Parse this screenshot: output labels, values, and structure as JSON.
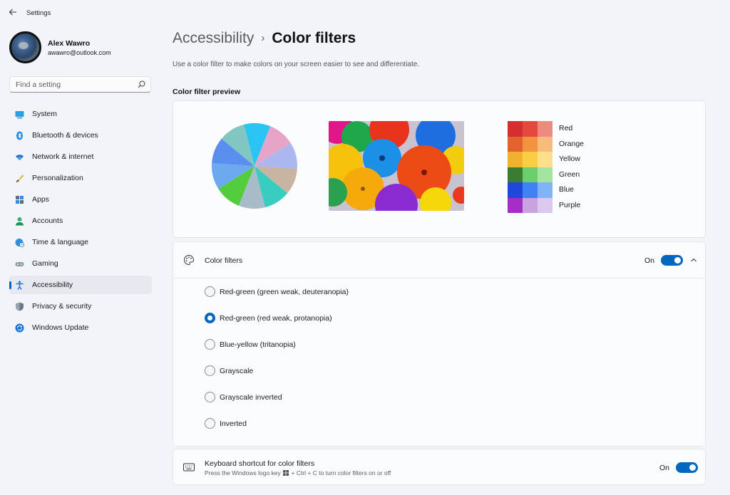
{
  "app": {
    "title": "Settings"
  },
  "user": {
    "name": "Alex Wawro",
    "email": "awawro@outlook.com"
  },
  "search": {
    "placeholder": "Find a setting"
  },
  "sidebar": {
    "items": [
      {
        "label": "System",
        "icon": "monitor-icon"
      },
      {
        "label": "Bluetooth & devices",
        "icon": "bluetooth-icon"
      },
      {
        "label": "Network & internet",
        "icon": "wifi-icon"
      },
      {
        "label": "Personalization",
        "icon": "brush-icon"
      },
      {
        "label": "Apps",
        "icon": "apps-icon"
      },
      {
        "label": "Accounts",
        "icon": "person-icon"
      },
      {
        "label": "Time & language",
        "icon": "globe-clock-icon"
      },
      {
        "label": "Gaming",
        "icon": "gamepad-icon"
      },
      {
        "label": "Accessibility",
        "icon": "accessibility-icon",
        "active": true
      },
      {
        "label": "Privacy & security",
        "icon": "shield-icon"
      },
      {
        "label": "Windows Update",
        "icon": "update-icon"
      }
    ]
  },
  "breadcrumb": {
    "parent": "Accessibility",
    "separator": "›",
    "current": "Color filters"
  },
  "description": "Use a color filter to make colors on your screen easier to see and differentiate.",
  "preview": {
    "title": "Color filter preview",
    "swatches": [
      {
        "label": "Red",
        "colors": [
          "#d32f2f",
          "#e5483d",
          "#ee8a80"
        ]
      },
      {
        "label": "Orange",
        "colors": [
          "#e2622c",
          "#f3933f",
          "#f7bb7c"
        ]
      },
      {
        "label": "Yellow",
        "colors": [
          "#efb22f",
          "#fbcd46",
          "#fde088"
        ]
      },
      {
        "label": "Green",
        "colors": [
          "#3a7d32",
          "#6ccd6b",
          "#a4e3a0"
        ]
      },
      {
        "label": "Blue",
        "colors": [
          "#1f47d9",
          "#3f82f3",
          "#7fb4f8"
        ]
      },
      {
        "label": "Purple",
        "colors": [
          "#a52ec9",
          "#c8a1df",
          "#dcc8ec"
        ]
      }
    ],
    "pie_colors": [
      "#29c4f2",
      "#e6a4c8",
      "#aab8ef",
      "#c9b4a4",
      "#38cdc0",
      "#a8bcc8",
      "#53cc3d",
      "#6da9f1",
      "#5a8ff0",
      "#7fc7c0"
    ]
  },
  "color_filters": {
    "label": "Color filters",
    "state": "On",
    "enabled": true,
    "selected": 1,
    "options": [
      "Red-green (green weak, deuteranopia)",
      "Red-green (red weak, protanopia)",
      "Blue-yellow (tritanopia)",
      "Grayscale",
      "Grayscale inverted",
      "Inverted"
    ]
  },
  "keyboard_shortcut": {
    "title": "Keyboard shortcut for color filters",
    "sub_before": "Press the Windows logo key",
    "sub_after": "+ Ctrl + C to turn color filters on or off",
    "state": "On",
    "enabled": true
  },
  "colors": {
    "accent": "#0067c0",
    "background": "#f1f4f9",
    "card": "#fbfcfd"
  }
}
